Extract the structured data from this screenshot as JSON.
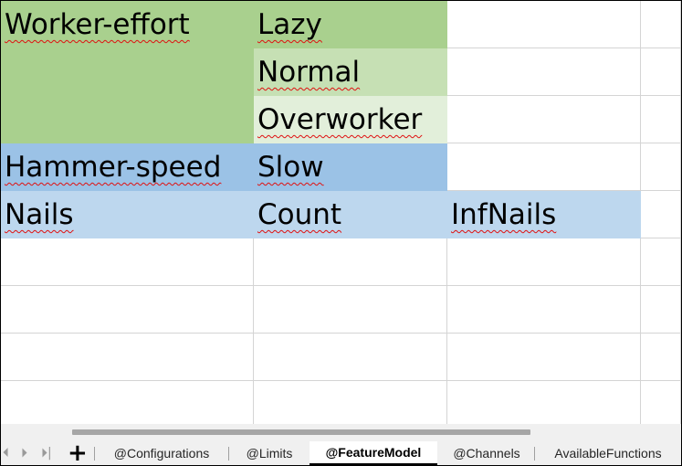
{
  "sheet": {
    "rows": [
      [
        "Worker-effort",
        "Lazy",
        "",
        ""
      ],
      [
        "",
        "Normal",
        "",
        ""
      ],
      [
        "",
        "Overworker",
        "",
        ""
      ],
      [
        "Hammer-speed",
        "Slow",
        "",
        ""
      ],
      [
        "Nails",
        "Count",
        "InfNails",
        ""
      ],
      [
        "",
        "",
        "",
        ""
      ],
      [
        "",
        "",
        "",
        ""
      ],
      [
        "",
        "",
        "",
        ""
      ],
      [
        "",
        "",
        "",
        ""
      ]
    ],
    "fills": [
      [
        "#a9d08e",
        "#a9d08e",
        "",
        ""
      ],
      [
        "#a9d08e",
        "#c6e0b4",
        "",
        ""
      ],
      [
        "#a9d08e",
        "#e2efda",
        "",
        ""
      ],
      [
        "#9bc2e6",
        "#9bc2e6",
        "",
        ""
      ],
      [
        "#bdd7ee",
        "#bdd7ee",
        "#bdd7ee",
        ""
      ],
      [
        "",
        "",
        "",
        ""
      ],
      [
        "",
        "",
        "",
        ""
      ],
      [
        "",
        "",
        "",
        ""
      ],
      [
        "",
        "",
        "",
        ""
      ]
    ]
  },
  "tabs": [
    {
      "label": "@Configurations",
      "active": false
    },
    {
      "label": "@Limits",
      "active": false
    },
    {
      "label": "@FeatureModel",
      "active": true
    },
    {
      "label": "@Channels",
      "active": false
    },
    {
      "label": "AvailableFunctions",
      "active": false
    }
  ],
  "sheetbar": {
    "add_sheet_glyph": "+",
    "nav_first_glyph": "⏴",
    "nav_prev_glyph": "⏴",
    "nav_next_glyph": "⏵",
    "nav_last_glyph": "⏵|"
  }
}
